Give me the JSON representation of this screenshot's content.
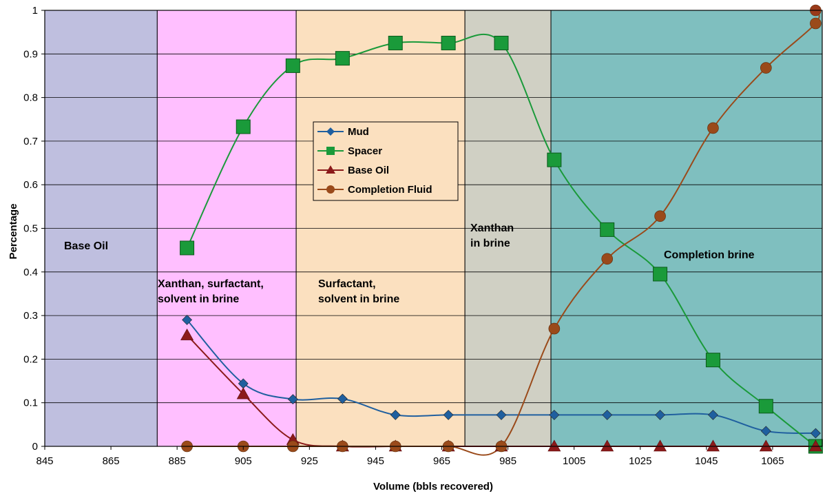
{
  "chart_data": {
    "type": "line",
    "xlabel": "Volume (bbls recovered)",
    "ylabel": "Percentage",
    "xlim": [
      845,
      1080
    ],
    "ylim": [
      0,
      1
    ],
    "xticks": [
      845,
      865,
      885,
      905,
      925,
      945,
      965,
      985,
      1005,
      1025,
      1045,
      1065
    ],
    "yticks": [
      0,
      0.1,
      0.2,
      0.3,
      0.4,
      0.5,
      0.6,
      0.7,
      0.8,
      0.9,
      1
    ],
    "grid": "horizontal",
    "legend_position": "center",
    "regions": [
      {
        "x0": 845,
        "x1": 879,
        "color": "#bfbfdf",
        "label": [
          "Base Oil"
        ]
      },
      {
        "x0": 879,
        "x1": 921,
        "color": "#ffbfff",
        "label": [
          "Xanthan, surfactant,",
          "solvent in brine"
        ]
      },
      {
        "x0": 921,
        "x1": 972,
        "color": "#fbe0bf",
        "label": [
          "Surfactant,",
          "solvent in brine"
        ]
      },
      {
        "x0": 972,
        "x1": 998,
        "color": "#d0d0c4",
        "label": [
          "Xanthan",
          "in brine"
        ]
      },
      {
        "x0": 998,
        "x1": 1080,
        "color": "#7fbfbf",
        "label": [
          "Completion brine"
        ]
      }
    ],
    "series": [
      {
        "name": "Mud",
        "marker": "diamond",
        "color": "#1f5f9f",
        "x": [
          888,
          905,
          920,
          935,
          951,
          967,
          983,
          999,
          1015,
          1031,
          1047,
          1063,
          1078
        ],
        "y": [
          0.29,
          0.144,
          0.108,
          0.109,
          0.072,
          0.072,
          0.072,
          0.072,
          0.072,
          0.072,
          0.072,
          0.035,
          0.03
        ]
      },
      {
        "name": "Spacer",
        "marker": "square",
        "color": "#1a9a3a",
        "x": [
          888,
          905,
          920,
          935,
          951,
          967,
          983,
          999,
          1015,
          1031,
          1047,
          1063,
          1078
        ],
        "y": [
          0.455,
          0.733,
          0.873,
          0.89,
          0.925,
          0.925,
          0.925,
          0.657,
          0.497,
          0.395,
          0.198,
          0.092,
          0.0
        ]
      },
      {
        "name": "Base Oil",
        "marker": "triangle",
        "color": "#8b1a1a",
        "x": [
          888,
          905,
          920,
          935,
          951,
          967,
          983,
          999,
          1015,
          1031,
          1047,
          1063,
          1078
        ],
        "y": [
          0.255,
          0.12,
          0.015,
          0,
          0,
          0,
          0,
          0,
          0,
          0,
          0,
          0,
          0
        ]
      },
      {
        "name": "Completion Fluid",
        "marker": "circle",
        "color": "#9a4a1a",
        "x": [
          888,
          905,
          920,
          935,
          951,
          967,
          983,
          999,
          1015,
          1031,
          1047,
          1063,
          1078
        ],
        "y": [
          0,
          0,
          0,
          0,
          0,
          0,
          0,
          0.27,
          0.43,
          0.528,
          0.73,
          0.868,
          0.97
        ]
      }
    ],
    "endpoint": {
      "x": 1078,
      "y": 1.0
    }
  }
}
